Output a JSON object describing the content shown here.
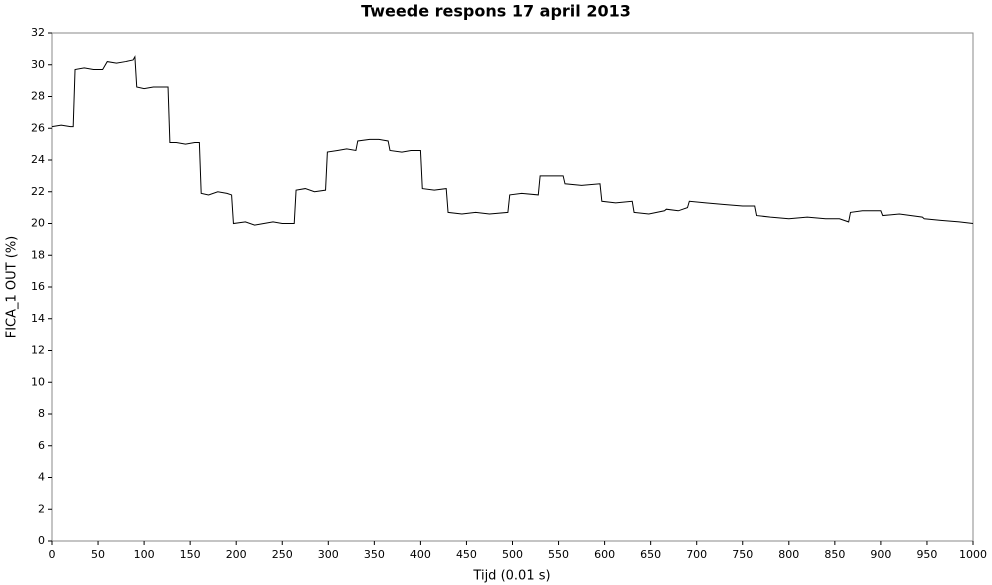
{
  "chart_data": {
    "type": "line",
    "title": "Tweede respons 17 april 2013",
    "x_label": "Tijd (0.01 s)",
    "y_label": "FICA_1 OUT (%)",
    "x": [
      0,
      10,
      20,
      23,
      25,
      35,
      45,
      55,
      60,
      70,
      80,
      88,
      90,
      92,
      100,
      110,
      120,
      126,
      128,
      135,
      145,
      155,
      160,
      162,
      170,
      180,
      190,
      195,
      197,
      210,
      220,
      230,
      240,
      250,
      263,
      265,
      275,
      285,
      297,
      299,
      310,
      320,
      330,
      332,
      345,
      355,
      365,
      367,
      380,
      390,
      400,
      402,
      415,
      428,
      430,
      445,
      460,
      475,
      495,
      497,
      510,
      528,
      530,
      545,
      555,
      557,
      575,
      595,
      597,
      612,
      630,
      632,
      648,
      665,
      667,
      680,
      690,
      692,
      710,
      730,
      750,
      763,
      765,
      780,
      800,
      820,
      840,
      842,
      855,
      865,
      867,
      880,
      900,
      902,
      920,
      945,
      947,
      965,
      985,
      1000
    ],
    "series": [
      {
        "color": "#000000",
        "values": [
          26.1,
          26.2,
          26.1,
          26.1,
          29.7,
          29.8,
          29.7,
          29.7,
          30.2,
          30.1,
          30.2,
          30.3,
          30.5,
          28.6,
          28.5,
          28.6,
          28.6,
          28.6,
          25.1,
          25.1,
          25.0,
          25.1,
          25.1,
          21.9,
          21.8,
          22.0,
          21.9,
          21.8,
          20.0,
          20.1,
          19.9,
          20.0,
          20.1,
          20.0,
          20.0,
          22.1,
          22.2,
          22.0,
          22.1,
          24.5,
          24.6,
          24.7,
          24.6,
          25.2,
          25.3,
          25.3,
          25.2,
          24.6,
          24.5,
          24.6,
          24.6,
          22.2,
          22.1,
          22.2,
          20.7,
          20.6,
          20.7,
          20.6,
          20.7,
          21.8,
          21.9,
          21.8,
          23.0,
          23.0,
          23.0,
          22.5,
          22.4,
          22.5,
          21.4,
          21.3,
          21.4,
          20.7,
          20.6,
          20.8,
          20.9,
          20.8,
          21.0,
          21.4,
          21.3,
          21.2,
          21.1,
          21.1,
          20.5,
          20.4,
          20.3,
          20.4,
          20.3,
          20.3,
          20.3,
          20.1,
          20.7,
          20.8,
          20.8,
          20.5,
          20.6,
          20.4,
          20.3,
          20.2,
          20.1,
          20.0
        ]
      }
    ],
    "xlim": [
      0,
      1000
    ],
    "xticks": [
      0,
      50,
      100,
      150,
      200,
      250,
      300,
      350,
      400,
      450,
      500,
      550,
      600,
      650,
      700,
      750,
      800,
      850,
      900,
      950,
      1000
    ],
    "ylim": [
      0,
      32
    ],
    "yticks": [
      0,
      2,
      4,
      6,
      8,
      10,
      12,
      14,
      16,
      18,
      20,
      22,
      24,
      26,
      28,
      30,
      32
    ],
    "grid": false
  }
}
